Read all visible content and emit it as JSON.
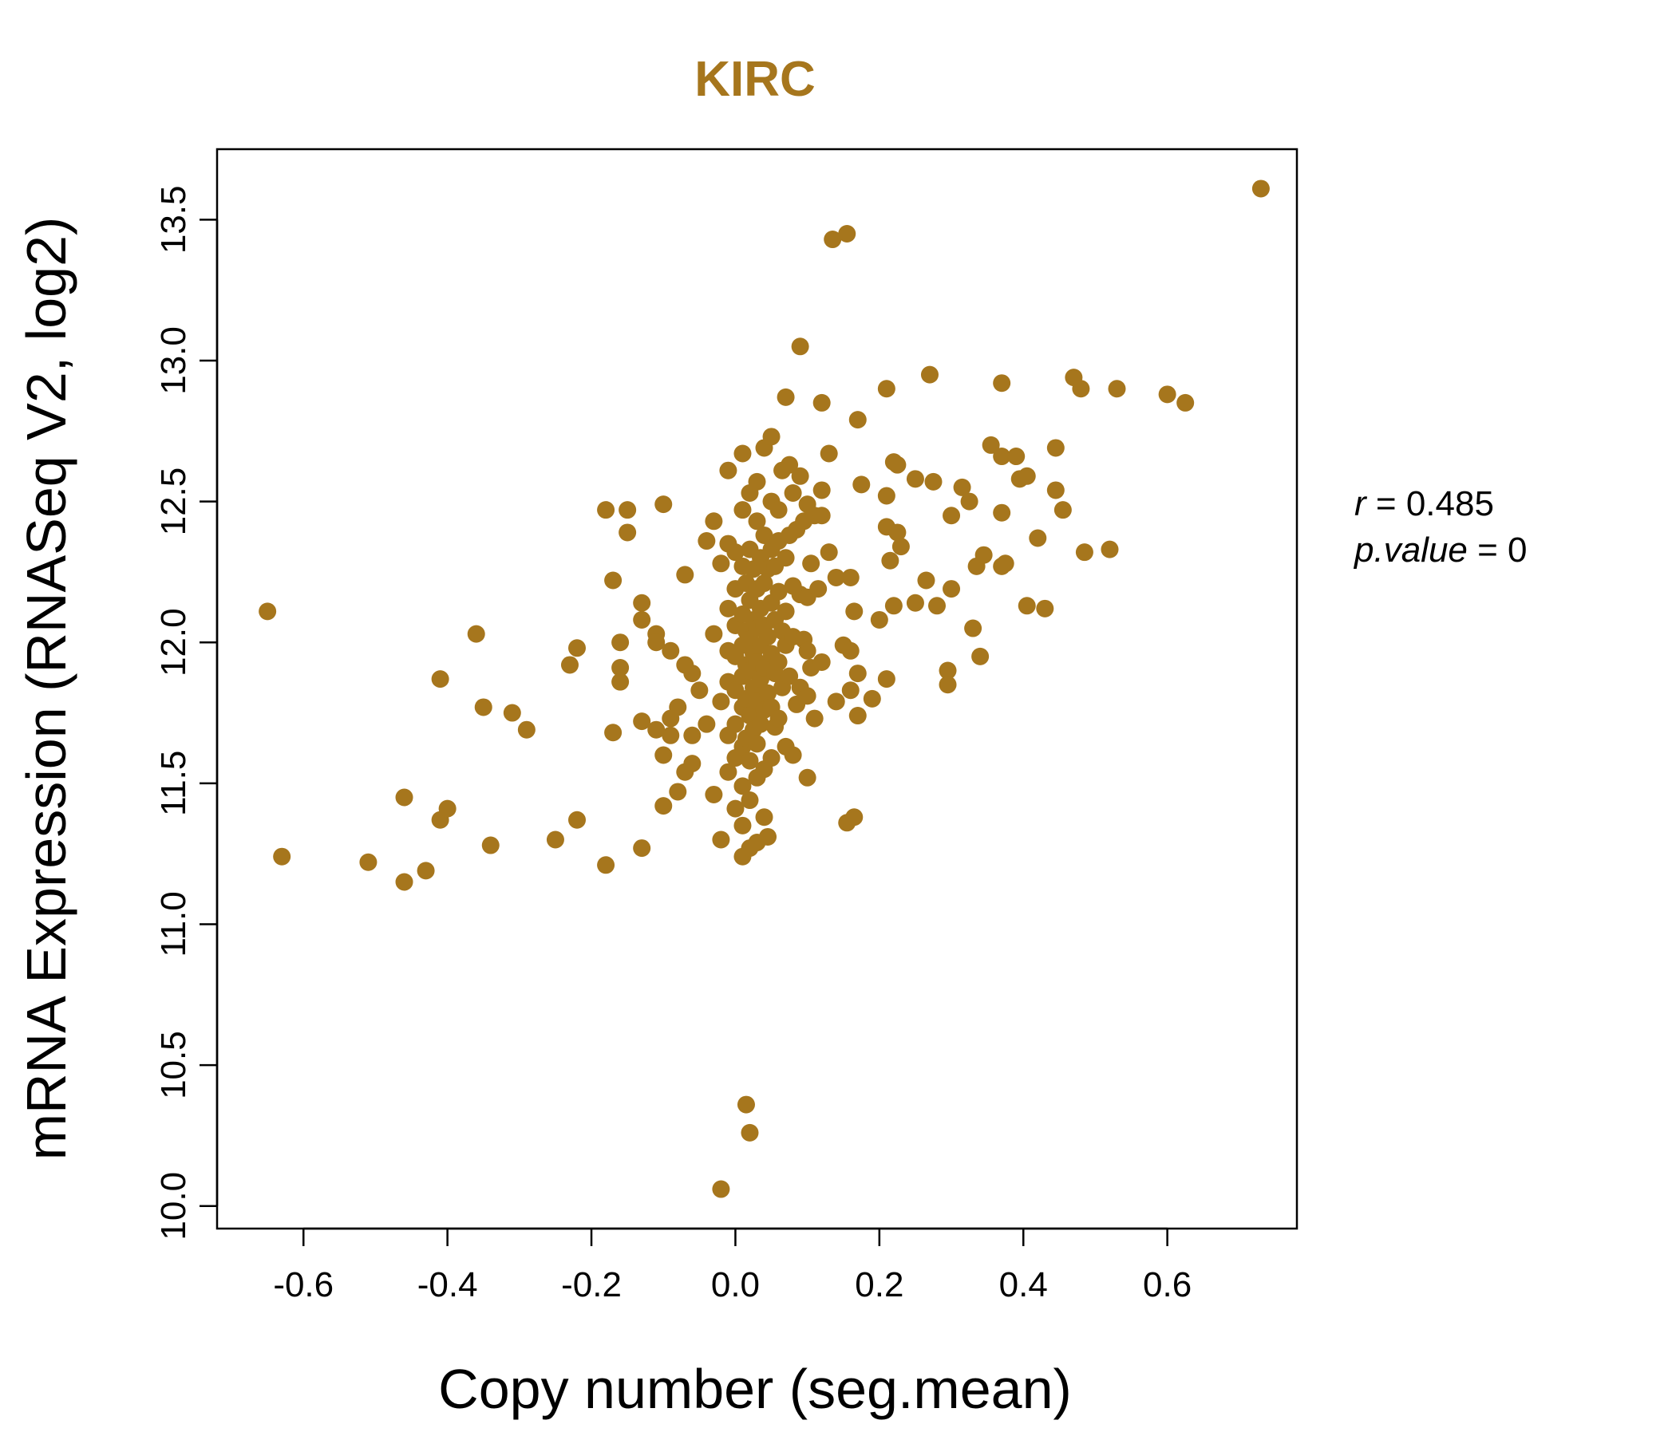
{
  "chart_data": {
    "type": "scatter",
    "title": "KIRC",
    "xlabel": "Copy number (seg.mean)",
    "ylabel": "mRNA Expression (RNASeq V2, log2)",
    "xlim": [
      -0.72,
      0.78
    ],
    "ylim": [
      9.92,
      13.75
    ],
    "x_ticks": [
      -0.6,
      -0.4,
      -0.2,
      0.0,
      0.2,
      0.4,
      0.6
    ],
    "x_tick_labels": [
      "-0.6",
      "-0.4",
      "-0.2",
      "0.0",
      "0.2",
      "0.4",
      "0.6"
    ],
    "y_ticks": [
      10.0,
      10.5,
      11.0,
      11.5,
      12.0,
      12.5,
      13.0,
      13.5
    ],
    "y_tick_labels": [
      "10.0",
      "10.5",
      "11.0",
      "11.5",
      "12.0",
      "12.5",
      "13.0",
      "13.5"
    ],
    "point_color": "#A6761D",
    "stats": {
      "r_label": "r",
      "r_value": "0.485",
      "p_label": "p.value",
      "p_value": "0"
    },
    "points": [
      [
        -0.65,
        12.11
      ],
      [
        -0.63,
        11.24
      ],
      [
        -0.51,
        11.22
      ],
      [
        -0.46,
        11.45
      ],
      [
        -0.46,
        11.15
      ],
      [
        -0.43,
        11.19
      ],
      [
        -0.41,
        11.87
      ],
      [
        -0.41,
        11.37
      ],
      [
        -0.4,
        11.41
      ],
      [
        -0.36,
        12.03
      ],
      [
        -0.35,
        11.77
      ],
      [
        -0.34,
        11.28
      ],
      [
        -0.31,
        11.75
      ],
      [
        -0.29,
        11.69
      ],
      [
        -0.25,
        11.3
      ],
      [
        -0.23,
        11.92
      ],
      [
        -0.22,
        11.98
      ],
      [
        -0.22,
        11.37
      ],
      [
        -0.18,
        12.47
      ],
      [
        -0.18,
        11.21
      ],
      [
        -0.17,
        12.22
      ],
      [
        -0.17,
        11.68
      ],
      [
        -0.16,
        12.0
      ],
      [
        -0.16,
        11.91
      ],
      [
        -0.16,
        11.86
      ],
      [
        -0.15,
        12.47
      ],
      [
        -0.15,
        12.39
      ],
      [
        -0.13,
        12.14
      ],
      [
        -0.13,
        12.08
      ],
      [
        -0.13,
        11.72
      ],
      [
        -0.13,
        11.27
      ],
      [
        -0.11,
        12.03
      ],
      [
        -0.11,
        12.0
      ],
      [
        -0.11,
        11.69
      ],
      [
        -0.1,
        12.49
      ],
      [
        -0.1,
        11.6
      ],
      [
        -0.1,
        11.42
      ],
      [
        -0.09,
        11.97
      ],
      [
        -0.09,
        11.73
      ],
      [
        -0.09,
        11.67
      ],
      [
        -0.08,
        11.77
      ],
      [
        -0.08,
        11.47
      ],
      [
        -0.07,
        12.24
      ],
      [
        -0.07,
        11.92
      ],
      [
        -0.07,
        11.54
      ],
      [
        -0.06,
        11.89
      ],
      [
        -0.06,
        11.67
      ],
      [
        -0.06,
        11.57
      ],
      [
        -0.05,
        11.83
      ],
      [
        -0.04,
        12.36
      ],
      [
        -0.04,
        11.71
      ],
      [
        -0.03,
        12.43
      ],
      [
        -0.03,
        12.03
      ],
      [
        -0.03,
        11.46
      ],
      [
        -0.02,
        12.28
      ],
      [
        -0.02,
        11.79
      ],
      [
        -0.02,
        11.3
      ],
      [
        -0.02,
        10.06
      ],
      [
        -0.01,
        12.61
      ],
      [
        -0.01,
        12.35
      ],
      [
        -0.01,
        12.12
      ],
      [
        -0.01,
        11.97
      ],
      [
        -0.01,
        11.86
      ],
      [
        -0.01,
        11.67
      ],
      [
        -0.01,
        11.54
      ],
      [
        0.0,
        12.32
      ],
      [
        0.0,
        12.19
      ],
      [
        0.0,
        12.06
      ],
      [
        0.0,
        11.95
      ],
      [
        0.0,
        11.83
      ],
      [
        0.0,
        11.71
      ],
      [
        0.0,
        11.59
      ],
      [
        0.0,
        11.41
      ],
      [
        0.01,
        12.67
      ],
      [
        0.01,
        12.47
      ],
      [
        0.01,
        12.27
      ],
      [
        0.01,
        12.1
      ],
      [
        0.01,
        11.99
      ],
      [
        0.01,
        11.88
      ],
      [
        0.01,
        11.77
      ],
      [
        0.01,
        11.63
      ],
      [
        0.01,
        11.49
      ],
      [
        0.01,
        11.35
      ],
      [
        0.01,
        11.24
      ],
      [
        0.015,
        12.21
      ],
      [
        0.015,
        12.04
      ],
      [
        0.015,
        11.92
      ],
      [
        0.015,
        11.8
      ],
      [
        0.015,
        11.66
      ],
      [
        0.015,
        10.36
      ],
      [
        0.02,
        12.53
      ],
      [
        0.02,
        12.33
      ],
      [
        0.02,
        12.15
      ],
      [
        0.02,
        12.01
      ],
      [
        0.02,
        11.9
      ],
      [
        0.02,
        11.74
      ],
      [
        0.02,
        11.58
      ],
      [
        0.02,
        11.44
      ],
      [
        0.02,
        11.27
      ],
      [
        0.02,
        10.26
      ],
      [
        0.025,
        12.26
      ],
      [
        0.025,
        12.08
      ],
      [
        0.025,
        11.96
      ],
      [
        0.025,
        11.84
      ],
      [
        0.025,
        11.69
      ],
      [
        0.03,
        12.57
      ],
      [
        0.03,
        12.43
      ],
      [
        0.03,
        12.19
      ],
      [
        0.03,
        12.05
      ],
      [
        0.03,
        11.93
      ],
      [
        0.03,
        11.79
      ],
      [
        0.03,
        11.64
      ],
      [
        0.03,
        11.52
      ],
      [
        0.03,
        11.29
      ],
      [
        0.035,
        12.3
      ],
      [
        0.035,
        12.12
      ],
      [
        0.035,
        11.99
      ],
      [
        0.035,
        11.87
      ],
      [
        0.035,
        11.71
      ],
      [
        0.04,
        12.69
      ],
      [
        0.04,
        12.38
      ],
      [
        0.04,
        12.21
      ],
      [
        0.04,
        12.06
      ],
      [
        0.04,
        11.91
      ],
      [
        0.04,
        11.76
      ],
      [
        0.04,
        11.55
      ],
      [
        0.04,
        11.38
      ],
      [
        0.045,
        12.26
      ],
      [
        0.045,
        12.02
      ],
      [
        0.045,
        11.82
      ],
      [
        0.045,
        11.31
      ],
      [
        0.05,
        12.73
      ],
      [
        0.05,
        12.5
      ],
      [
        0.05,
        12.33
      ],
      [
        0.05,
        12.14
      ],
      [
        0.05,
        11.96
      ],
      [
        0.05,
        11.77
      ],
      [
        0.05,
        11.59
      ],
      [
        0.055,
        12.27
      ],
      [
        0.055,
        12.08
      ],
      [
        0.055,
        11.89
      ],
      [
        0.055,
        11.7
      ],
      [
        0.06,
        12.47
      ],
      [
        0.06,
        12.36
      ],
      [
        0.06,
        12.18
      ],
      [
        0.06,
        11.93
      ],
      [
        0.06,
        11.73
      ],
      [
        0.065,
        12.61
      ],
      [
        0.065,
        12.04
      ],
      [
        0.065,
        11.84
      ],
      [
        0.07,
        12.87
      ],
      [
        0.07,
        12.3
      ],
      [
        0.07,
        12.11
      ],
      [
        0.07,
        11.99
      ],
      [
        0.07,
        11.63
      ],
      [
        0.075,
        12.63
      ],
      [
        0.075,
        12.38
      ],
      [
        0.075,
        11.88
      ],
      [
        0.08,
        12.53
      ],
      [
        0.08,
        12.2
      ],
      [
        0.08,
        12.02
      ],
      [
        0.08,
        11.6
      ],
      [
        0.085,
        12.4
      ],
      [
        0.085,
        11.78
      ],
      [
        0.09,
        13.05
      ],
      [
        0.09,
        12.59
      ],
      [
        0.09,
        12.17
      ],
      [
        0.09,
        11.84
      ],
      [
        0.095,
        12.43
      ],
      [
        0.095,
        12.01
      ],
      [
        0.1,
        12.49
      ],
      [
        0.1,
        12.16
      ],
      [
        0.1,
        11.97
      ],
      [
        0.1,
        11.81
      ],
      [
        0.1,
        11.52
      ],
      [
        0.105,
        12.28
      ],
      [
        0.105,
        11.91
      ],
      [
        0.11,
        12.45
      ],
      [
        0.11,
        11.73
      ],
      [
        0.115,
        12.19
      ],
      [
        0.12,
        12.85
      ],
      [
        0.12,
        12.54
      ],
      [
        0.12,
        12.45
      ],
      [
        0.12,
        11.93
      ],
      [
        0.13,
        12.67
      ],
      [
        0.13,
        12.32
      ],
      [
        0.135,
        13.43
      ],
      [
        0.14,
        12.23
      ],
      [
        0.14,
        11.79
      ],
      [
        0.15,
        11.99
      ],
      [
        0.155,
        13.45
      ],
      [
        0.155,
        11.36
      ],
      [
        0.16,
        12.23
      ],
      [
        0.16,
        11.97
      ],
      [
        0.16,
        11.83
      ],
      [
        0.165,
        12.11
      ],
      [
        0.165,
        11.38
      ],
      [
        0.17,
        12.79
      ],
      [
        0.17,
        11.89
      ],
      [
        0.17,
        11.74
      ],
      [
        0.175,
        12.56
      ],
      [
        0.19,
        11.8
      ],
      [
        0.2,
        12.08
      ],
      [
        0.21,
        12.9
      ],
      [
        0.21,
        12.52
      ],
      [
        0.21,
        12.41
      ],
      [
        0.21,
        11.87
      ],
      [
        0.215,
        12.29
      ],
      [
        0.22,
        12.64
      ],
      [
        0.22,
        12.13
      ],
      [
        0.225,
        12.63
      ],
      [
        0.225,
        12.39
      ],
      [
        0.23,
        12.34
      ],
      [
        0.25,
        12.58
      ],
      [
        0.25,
        12.14
      ],
      [
        0.265,
        12.22
      ],
      [
        0.27,
        12.95
      ],
      [
        0.275,
        12.57
      ],
      [
        0.28,
        12.13
      ],
      [
        0.295,
        11.9
      ],
      [
        0.295,
        11.85
      ],
      [
        0.3,
        12.19
      ],
      [
        0.3,
        12.45
      ],
      [
        0.315,
        12.55
      ],
      [
        0.325,
        12.5
      ],
      [
        0.33,
        12.05
      ],
      [
        0.335,
        12.27
      ],
      [
        0.34,
        11.95
      ],
      [
        0.345,
        12.31
      ],
      [
        0.355,
        12.7
      ],
      [
        0.37,
        12.92
      ],
      [
        0.37,
        12.66
      ],
      [
        0.37,
        12.46
      ],
      [
        0.37,
        12.27
      ],
      [
        0.375,
        12.28
      ],
      [
        0.39,
        12.66
      ],
      [
        0.395,
        12.58
      ],
      [
        0.405,
        12.59
      ],
      [
        0.405,
        12.13
      ],
      [
        0.42,
        12.37
      ],
      [
        0.43,
        12.12
      ],
      [
        0.445,
        12.69
      ],
      [
        0.445,
        12.54
      ],
      [
        0.455,
        12.47
      ],
      [
        0.47,
        12.94
      ],
      [
        0.48,
        12.9
      ],
      [
        0.485,
        12.32
      ],
      [
        0.52,
        12.33
      ],
      [
        0.53,
        12.9
      ],
      [
        0.6,
        12.88
      ],
      [
        0.625,
        12.85
      ],
      [
        0.73,
        13.61
      ]
    ]
  }
}
